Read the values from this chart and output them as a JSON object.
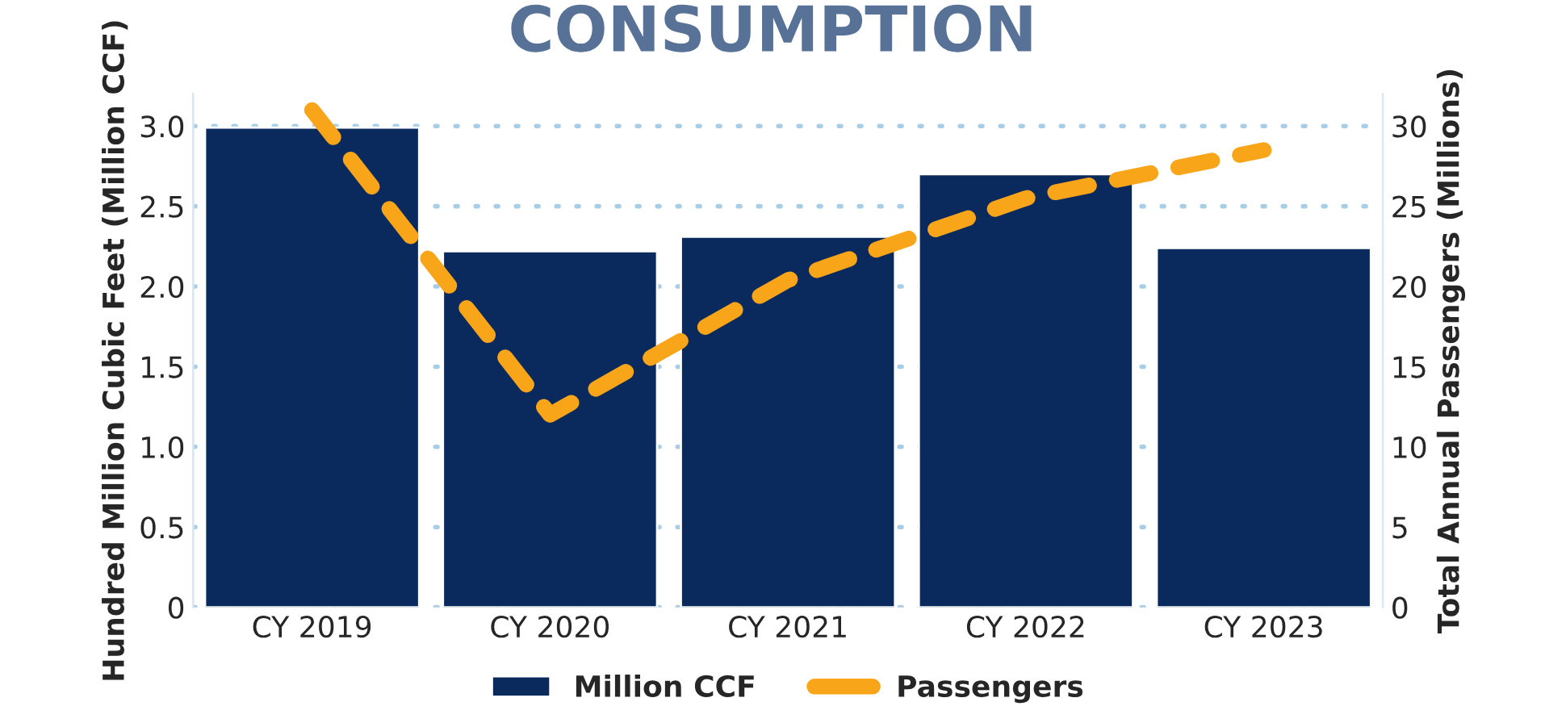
{
  "chart_data": {
    "type": "bar",
    "title": "CONSUMPTION",
    "categories": [
      "CY 2019",
      "CY 2020",
      "CY 2021",
      "CY 2022",
      "CY 2023"
    ],
    "series": [
      {
        "name": "Million CCF",
        "color": "#0a2a5e",
        "values": [
          2.99,
          2.22,
          2.31,
          2.7,
          2.24
        ]
      },
      {
        "name": "Passengers",
        "type": "line",
        "axis": "y2",
        "color": "#f9a51a",
        "values": [
          31.0,
          12.0,
          20.4,
          25.5,
          28.5
        ]
      }
    ],
    "ylabel": "Hundred Million Cubic Feet (Million CCF)",
    "y2label": "Total Annual Passengers (Millions)",
    "ylim": [
      0,
      3.2
    ],
    "yticks": [
      {
        "value": 0,
        "label": "0"
      },
      {
        "value": 0.5,
        "label": "0.5"
      },
      {
        "value": 1,
        "label": "1.0"
      },
      {
        "value": 1.5,
        "label": "1.5"
      },
      {
        "value": 2,
        "label": "2.0"
      },
      {
        "value": 2.5,
        "label": "2.5"
      },
      {
        "value": 3,
        "label": "3.0"
      }
    ],
    "y2lim": [
      0,
      32
    ],
    "y2ticks": [
      0,
      5,
      10,
      15,
      20,
      25,
      30
    ],
    "grid": "y",
    "legend": "bottom",
    "line_style": "dashed",
    "marker": "none"
  }
}
